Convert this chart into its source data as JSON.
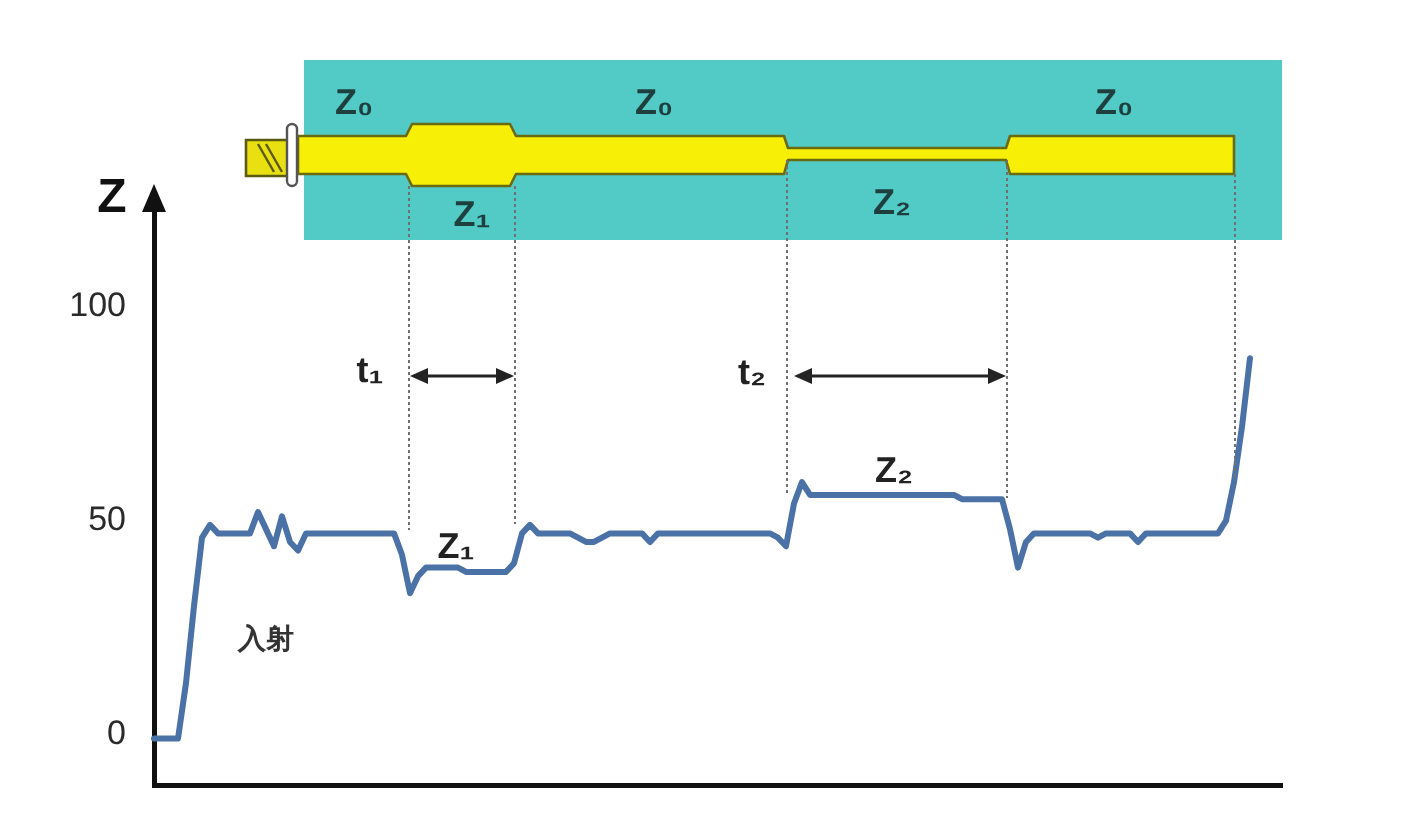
{
  "chart_data": {
    "type": "line",
    "ylabel": "Z",
    "categories": [
      null,
      null,
      null,
      null,
      null,
      null,
      null,
      null,
      null,
      null,
      null,
      null,
      null,
      null,
      null,
      null,
      null,
      null,
      null,
      null,
      null,
      null,
      null,
      null,
      null,
      null,
      null,
      null,
      null,
      null,
      null,
      null,
      null,
      null,
      null,
      null,
      null,
      null,
      null,
      null,
      null,
      null,
      null,
      null,
      null,
      null,
      null,
      null,
      null,
      null,
      null,
      null,
      null,
      null,
      null,
      null,
      null,
      null,
      null,
      null,
      null,
      null,
      null,
      null,
      null,
      null,
      null,
      null,
      null,
      null,
      null,
      null,
      null,
      null,
      null,
      null,
      null,
      null,
      null,
      null,
      null,
      null,
      null,
      null,
      null,
      null,
      null,
      null,
      null,
      null,
      null,
      null,
      null,
      null,
      null,
      null,
      null,
      null,
      null,
      null,
      null,
      null,
      null,
      null,
      null,
      null,
      null,
      null,
      null,
      null,
      null,
      null,
      null,
      null,
      null,
      null,
      null,
      null,
      null,
      null,
      null,
      null,
      null,
      null,
      null,
      null,
      null,
      null,
      null,
      null,
      null,
      null,
      null,
      null,
      null,
      null,
      null,
      null,
      null,
      null,
      null,
      null
    ],
    "values": [
      -1,
      -1,
      -1,
      -1,
      12,
      30,
      46,
      49,
      47,
      47,
      47,
      47,
      47,
      52,
      48,
      44,
      51,
      45,
      43,
      47,
      47,
      47,
      47,
      47,
      47,
      47,
      47,
      47,
      47,
      47,
      47,
      42,
      33,
      37,
      39,
      39,
      39,
      39,
      39,
      38,
      38,
      38,
      38,
      38,
      38,
      40,
      47,
      49,
      47,
      47,
      47,
      47,
      47,
      46,
      45,
      45,
      46,
      47,
      47,
      47,
      47,
      47,
      45,
      47,
      47,
      47,
      47,
      47,
      47,
      47,
      47,
      47,
      47,
      47,
      47,
      47,
      47,
      47,
      46,
      44,
      54,
      59,
      56,
      56,
      56,
      56,
      56,
      56,
      56,
      56,
      56,
      56,
      56,
      56,
      56,
      56,
      56,
      56,
      56,
      56,
      56,
      55,
      55,
      55,
      55,
      55,
      55,
      48,
      39,
      45,
      47,
      47,
      47,
      47,
      47,
      47,
      47,
      47,
      46,
      47,
      47,
      47,
      47,
      45,
      47,
      47,
      47,
      47,
      47,
      47,
      47,
      47,
      47,
      47,
      50,
      59,
      72,
      88,
      null,
      null,
      null,
      null
    ],
    "color": "#4a72a6",
    "ylim": [
      -12,
      125
    ],
    "yticks": [
      0,
      50,
      100
    ],
    "tick_labels": "y",
    "grid": false,
    "legend": false,
    "marker": "none",
    "line_style": "solid",
    "annotations": [
      "Z₀",
      "Z₀",
      "Z₀",
      "Z₁",
      "Z₂",
      "t₁",
      "t₂",
      "Z₁",
      "Z₂",
      "入射"
    ]
  }
}
